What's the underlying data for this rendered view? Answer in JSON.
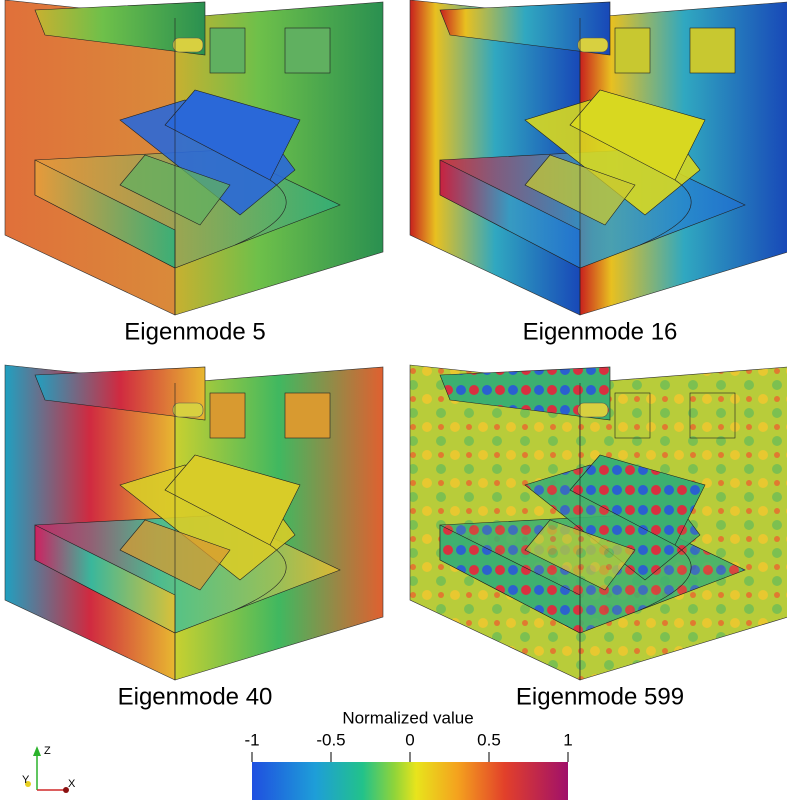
{
  "panels": [
    {
      "label": "Eigenmode 5"
    },
    {
      "label": "Eigenmode 16"
    },
    {
      "label": "Eigenmode 40"
    },
    {
      "label": "Eigenmode 599"
    }
  ],
  "colorbar": {
    "title": "Normalized value",
    "range": [
      -1,
      1
    ],
    "ticks": [
      -1,
      -0.5,
      0,
      0.5,
      1
    ]
  },
  "axes": {
    "z": "Z",
    "y": "Y",
    "x": "X"
  }
}
